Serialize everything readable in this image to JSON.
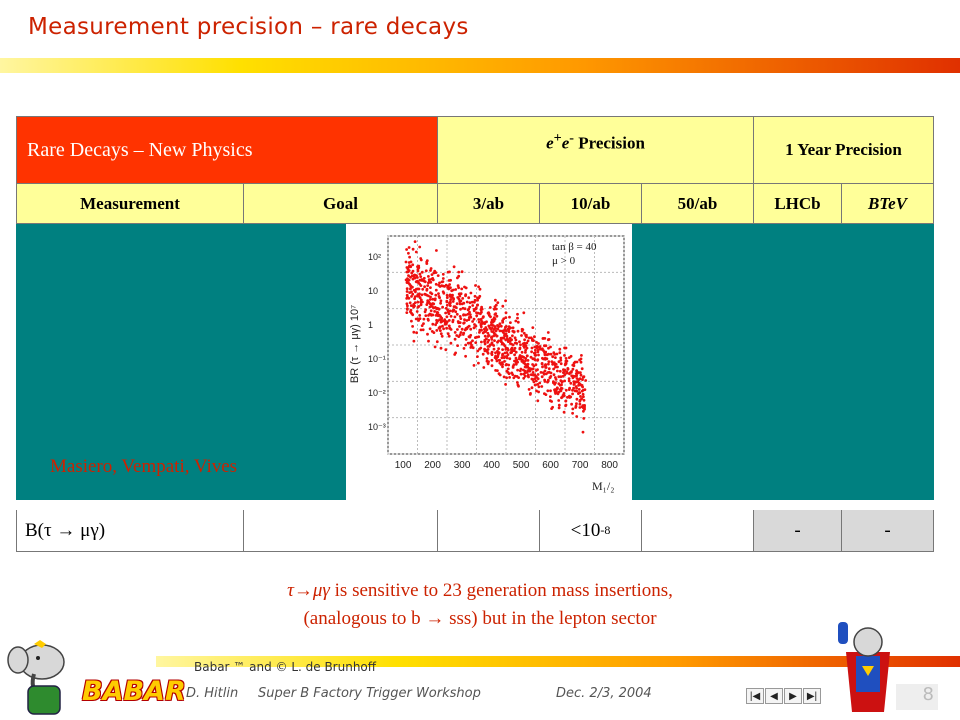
{
  "slide": {
    "title": "Measurement precision – rare decays"
  },
  "table": {
    "header_main": "Rare Decays – New Physics",
    "header_precision_html": "e<sup>+</sup>e<sup>-</sup> Precision",
    "header_year": "1 Year Precision",
    "columns": [
      "Measurement",
      "Goal",
      "3/ab",
      "10/ab",
      "50/ab",
      "LHCb",
      "BTeV"
    ],
    "row": {
      "measurement_html": "B(τ → μγ)",
      "goal": "",
      "v3ab": "",
      "v10ab": "<10",
      "v10ab_exp": "-8",
      "v50ab": "",
      "lhcb": "-",
      "btev": "-"
    }
  },
  "plot": {
    "ylabel": "BR (τ → μγ) 10⁷",
    "legend_line1": "tan β = 40",
    "legend_line2": "μ > 0",
    "xlabel": "M₁/₂",
    "x_ticks": [
      "100",
      "200",
      "300",
      "400",
      "500",
      "600",
      "700",
      "800"
    ],
    "y_ticks": [
      "10²",
      "10",
      "1",
      "10⁻¹",
      "10⁻²",
      "10⁻³"
    ]
  },
  "credit": "Masiero, Vempati, Vives",
  "notes": {
    "line1_suffix": " is sensitive to 23 generation mass insertions,",
    "line2": "(analogous to b → sss) but in the lepton sector"
  },
  "footer": {
    "copyright": "Babar ™ and © L. de Brunhoff",
    "brand": "BABAR",
    "author": "D. Hitlin",
    "event": "Super B Factory Trigger Workshop",
    "date": "Dec. 2/3, 2004",
    "page": "8"
  },
  "colors": {
    "accent_red": "#cc2200",
    "header_red": "#ff3300",
    "header_yellow": "#ffff99",
    "overlay_teal": "#008080",
    "scatter": "#ee1111"
  }
}
